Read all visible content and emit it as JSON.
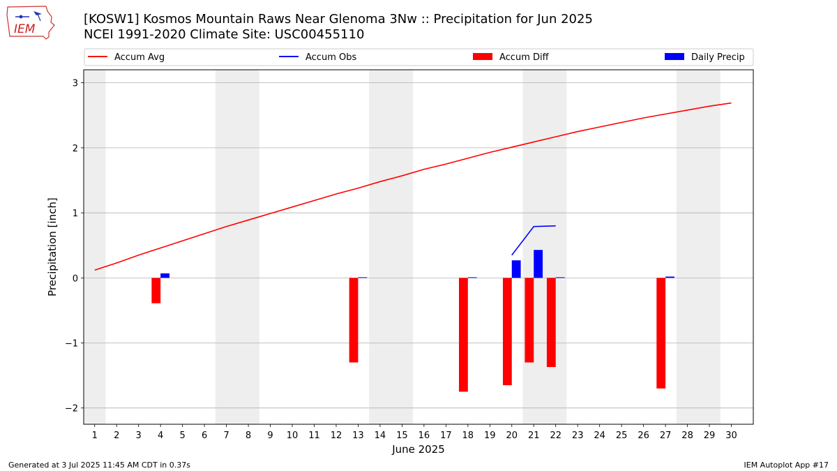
{
  "header": {
    "title": "[KOSW1] Kosmos Mountain Raws Near Glenoma 3Nw :: Precipitation for Jun 2025",
    "subtitle": "NCEI 1991-2020 Climate Site: USC00455110"
  },
  "logo": {
    "text": "IEM",
    "icon": "iem-iowa-logo"
  },
  "footer": {
    "generated": "Generated at 3 Jul 2025 11:45 AM CDT in 0.37s",
    "app": "IEM Autoplot App #17"
  },
  "chart_data": {
    "type": "bar",
    "title": "",
    "xlabel": "June 2025",
    "ylabel": "Precipitation [inch]",
    "xlim": [
      0.5,
      31
    ],
    "ylim": [
      -2.25,
      3.2
    ],
    "grid": true,
    "legend_placement": "top",
    "x_ticks": [
      1,
      2,
      3,
      4,
      5,
      6,
      7,
      8,
      9,
      10,
      11,
      12,
      13,
      14,
      15,
      16,
      17,
      18,
      19,
      20,
      21,
      22,
      23,
      24,
      25,
      26,
      27,
      28,
      29,
      30
    ],
    "y_ticks": [
      -2,
      -1,
      0,
      1,
      2,
      3
    ],
    "y_tick_labels": [
      "−2",
      "−1",
      "0",
      "1",
      "2",
      "3"
    ],
    "weekend_bands": [
      [
        0.5,
        1.5
      ],
      [
        6.5,
        8.5
      ],
      [
        13.5,
        15.5
      ],
      [
        20.5,
        22.5
      ],
      [
        27.5,
        29.5
      ]
    ],
    "colors": {
      "accum_avg": "#ff0000",
      "accum_obs": "#0000ff",
      "accum_diff": "#ff0000",
      "daily_precip": "#0000ff",
      "band": "#eeeeee",
      "grid": "#b0b0b0"
    },
    "legend": [
      "Accum Avg",
      "Accum Obs",
      "Accum Diff",
      "Daily Precip"
    ],
    "series": [
      {
        "name": "Accum Avg",
        "kind": "line",
        "x": [
          1,
          2,
          3,
          4,
          5,
          6,
          7,
          8,
          9,
          10,
          11,
          12,
          13,
          14,
          15,
          16,
          17,
          18,
          19,
          20,
          21,
          22,
          23,
          24,
          25,
          26,
          27,
          28,
          29,
          30
        ],
        "values": [
          0.12,
          0.23,
          0.35,
          0.46,
          0.57,
          0.68,
          0.79,
          0.89,
          0.99,
          1.09,
          1.19,
          1.29,
          1.38,
          1.48,
          1.57,
          1.67,
          1.75,
          1.84,
          1.93,
          2.01,
          2.09,
          2.17,
          2.25,
          2.32,
          2.39,
          2.46,
          2.52,
          2.58,
          2.64,
          2.69
        ]
      },
      {
        "name": "Accum Obs",
        "kind": "line",
        "x": [
          20,
          21,
          22
        ],
        "values": [
          0.35,
          0.79,
          0.8
        ]
      },
      {
        "name": "Accum Diff",
        "kind": "bar",
        "x": [
          4,
          13,
          18,
          20,
          21,
          22,
          27
        ],
        "values": [
          -0.39,
          -1.3,
          -1.75,
          -1.65,
          -1.3,
          -1.37,
          -1.7
        ]
      },
      {
        "name": "Daily Precip",
        "kind": "bar",
        "x": [
          4,
          13,
          18,
          20,
          21,
          22,
          27
        ],
        "values": [
          0.07,
          0.01,
          0.01,
          0.27,
          0.43,
          0.01,
          0.02
        ]
      }
    ]
  }
}
